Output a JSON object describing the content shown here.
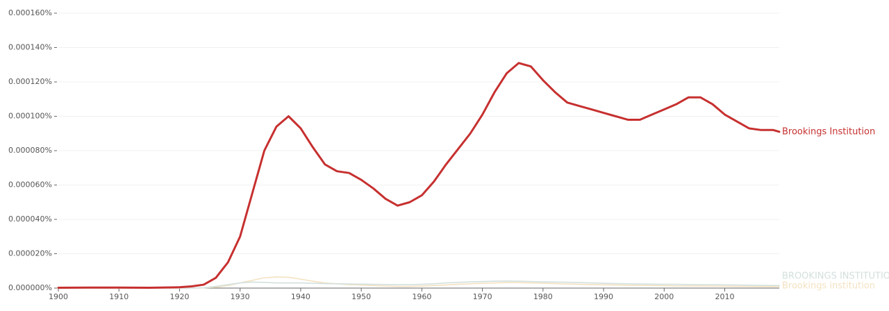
{
  "chart_data": {
    "type": "line",
    "x": [
      1900,
      1905,
      1910,
      1915,
      1920,
      1922,
      1924,
      1926,
      1928,
      1930,
      1932,
      1934,
      1936,
      1938,
      1940,
      1942,
      1944,
      1946,
      1948,
      1950,
      1952,
      1954,
      1956,
      1958,
      1960,
      1962,
      1964,
      1966,
      1968,
      1970,
      1972,
      1974,
      1976,
      1978,
      1980,
      1982,
      1984,
      1986,
      1988,
      1990,
      1992,
      1994,
      1996,
      1998,
      2000,
      2002,
      2004,
      2006,
      2008,
      2010,
      2012,
      2014,
      2016,
      2018,
      2019
    ],
    "series": [
      {
        "name": "Brookings Institution",
        "color": "#c6302f",
        "values": [
          2e-07,
          3e-07,
          3e-07,
          2e-07,
          5e-07,
          1e-06,
          2e-06,
          6e-06,
          1.5e-05,
          3e-05,
          5.5e-05,
          8e-05,
          9.4e-05,
          0.0001,
          9.3e-05,
          8.2e-05,
          7.2e-05,
          6.8e-05,
          6.7e-05,
          6.3e-05,
          5.8e-05,
          5.2e-05,
          4.8e-05,
          5e-05,
          5.4e-05,
          6.2e-05,
          7.2e-05,
          8.1e-05,
          9e-05,
          0.000101,
          0.000114,
          0.000125,
          0.000131,
          0.000129,
          0.000121,
          0.000114,
          0.000108,
          0.000106,
          0.000104,
          0.000102,
          0.0001,
          9.8e-05,
          9.8e-05,
          0.000101,
          0.000104,
          0.000107,
          0.000111,
          0.000111,
          0.000107,
          0.000101,
          9.7e-05,
          9.3e-05,
          9.2e-05,
          9.2e-05,
          9.1e-05
        ]
      },
      {
        "name": "BROOKINGS INSTITUTION",
        "color": "#d3e0de",
        "values": [
          0,
          0,
          0,
          0,
          0,
          0,
          2e-07,
          1e-06,
          2e-06,
          3e-06,
          3.5e-06,
          3.3e-06,
          3e-06,
          3e-06,
          3e-06,
          2.8e-06,
          2.6e-06,
          2.5e-06,
          2.4e-06,
          2.3e-06,
          2.2e-06,
          2.1e-06,
          2e-06,
          2e-06,
          2.2e-06,
          2.5e-06,
          3e-06,
          3.3e-06,
          3.6e-06,
          3.8e-06,
          4e-06,
          4.1e-06,
          4e-06,
          3.8e-06,
          3.6e-06,
          3.5e-06,
          3.4e-06,
          3.2e-06,
          3e-06,
          2.8e-06,
          2.6e-06,
          2.5e-06,
          2.4e-06,
          2.3e-06,
          2.2e-06,
          2.2e-06,
          2.1e-06,
          2e-06,
          2e-06,
          1.9e-06,
          1.8e-06,
          1.7e-06,
          1.6e-06,
          1.5e-06,
          1.5e-06
        ]
      },
      {
        "name": "Brookings institution",
        "color": "#f3e2c1",
        "values": [
          0,
          0,
          0,
          0,
          0,
          0,
          1e-07,
          5e-07,
          1.5e-06,
          3e-06,
          4.5e-06,
          6e-06,
          6.5e-06,
          6.3e-06,
          5.2e-06,
          4e-06,
          3e-06,
          2.5e-06,
          2e-06,
          1.8e-06,
          1.5e-06,
          1.2e-06,
          1e-06,
          1e-06,
          1.2e-06,
          1.5e-06,
          1.8e-06,
          2.2e-06,
          2.5e-06,
          2.8e-06,
          3e-06,
          3.2e-06,
          3.2e-06,
          3e-06,
          2.8e-06,
          2.6e-06,
          2.4e-06,
          2.2e-06,
          2e-06,
          1.9e-06,
          1.8e-06,
          1.7e-06,
          1.6e-06,
          1.5e-06,
          1.4e-06,
          1.3e-06,
          1.3e-06,
          1.2e-06,
          1.2e-06,
          1.1e-06,
          1e-06,
          1e-06,
          9e-07,
          9e-07,
          9e-07
        ]
      }
    ],
    "xlim": [
      1900,
      2019
    ],
    "xticks": [
      1900,
      1910,
      1920,
      1930,
      1940,
      1950,
      1960,
      1970,
      1980,
      1990,
      2000,
      2010
    ],
    "ylim": [
      0,
      0.00016
    ],
    "yticks": [
      {
        "value": 0,
        "label": "0.000000%"
      },
      {
        "value": 2e-05,
        "label": "0.000020%"
      },
      {
        "value": 4e-05,
        "label": "0.000040%"
      },
      {
        "value": 6e-05,
        "label": "0.000060%"
      },
      {
        "value": 8e-05,
        "label": "0.000080%"
      },
      {
        "value": 0.0001,
        "label": "0.000100%"
      },
      {
        "value": 0.00012,
        "label": "0.000120%"
      },
      {
        "value": 0.00014,
        "label": "0.000140%"
      },
      {
        "value": 0.00016,
        "label": "0.000160%"
      }
    ],
    "grid": true
  }
}
